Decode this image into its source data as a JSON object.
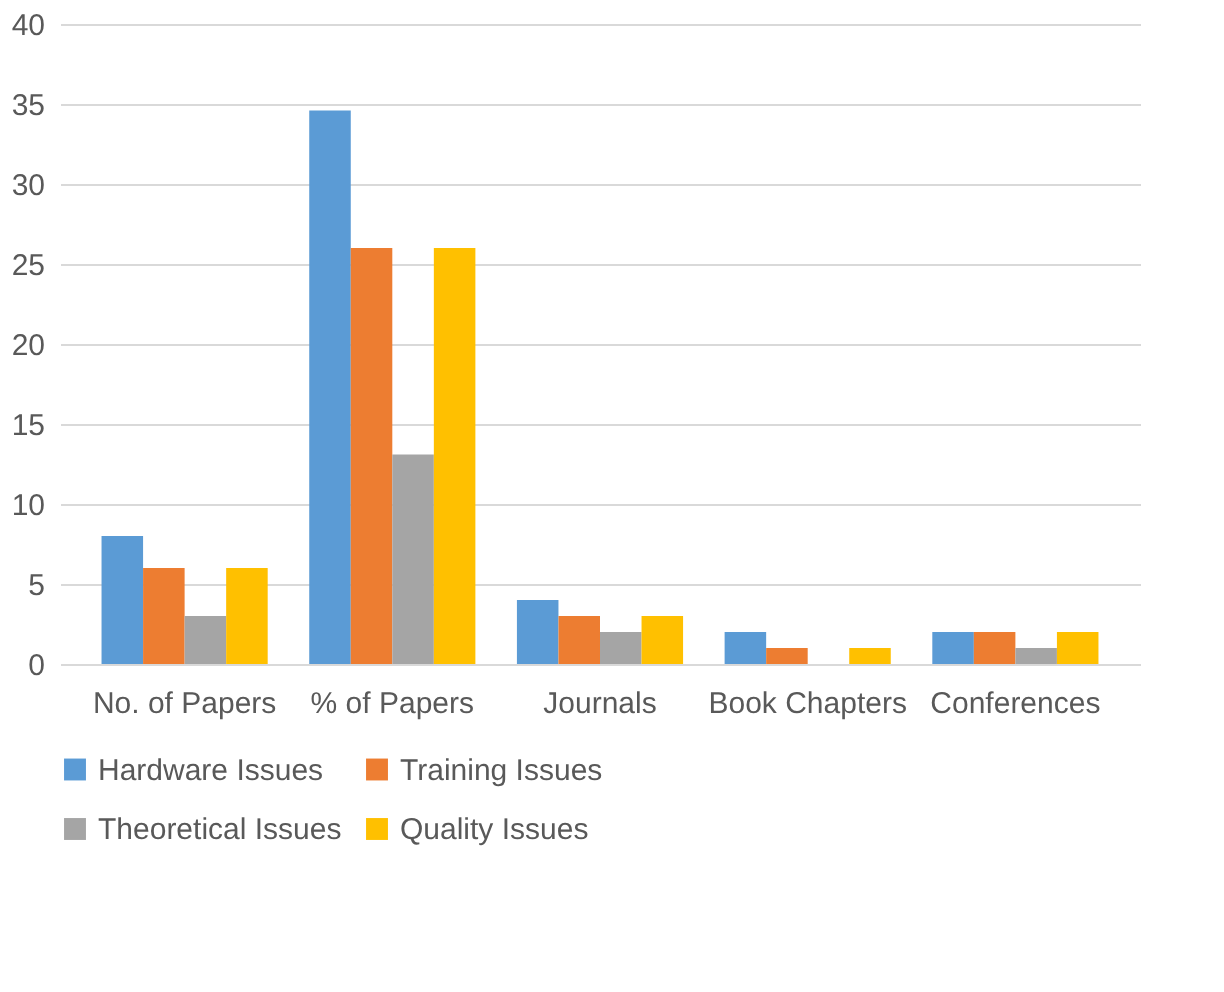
{
  "chart_data": {
    "type": "bar",
    "categories": [
      "No. of Papers",
      "% of Papers",
      "Journals",
      "Book Chapters",
      "Conferences"
    ],
    "series": [
      {
        "name": "Hardware Issues",
        "color": "#5b9bd5",
        "values": [
          8,
          34.6,
          4,
          2,
          2
        ]
      },
      {
        "name": "Training Issues",
        "color": "#ed7d31",
        "values": [
          6,
          26,
          3,
          1,
          2
        ]
      },
      {
        "name": "Theoretical Issues",
        "color": "#a5a5a5",
        "values": [
          3,
          13.1,
          2,
          0,
          1
        ]
      },
      {
        "name": "Quality Issues",
        "color": "#ffc000",
        "values": [
          6,
          26,
          3,
          1,
          2
        ]
      }
    ],
    "ylim": [
      0,
      40
    ],
    "yticks": [
      0,
      5,
      10,
      15,
      20,
      25,
      30,
      35,
      40
    ],
    "grid": "y",
    "legend": "bottom"
  }
}
